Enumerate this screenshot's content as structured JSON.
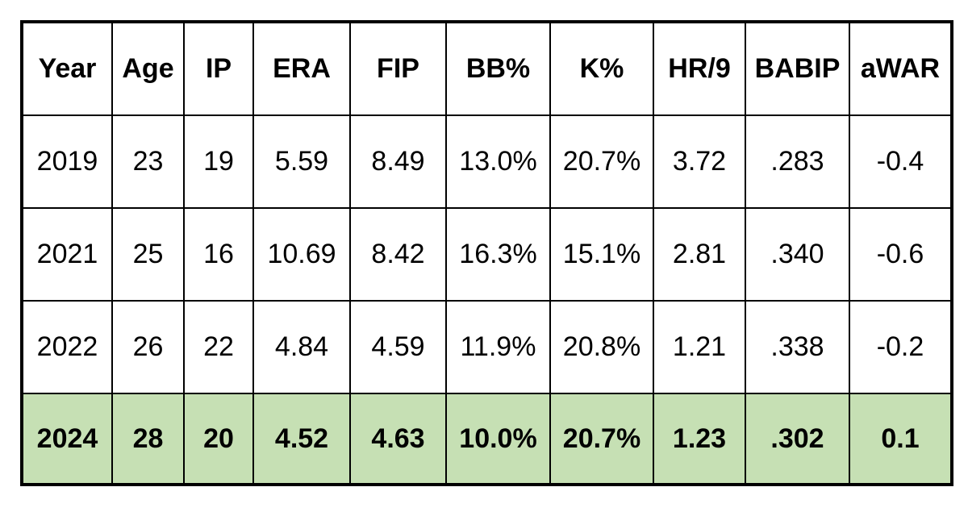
{
  "table": {
    "header": [
      "Year",
      "Age",
      "IP",
      "ERA",
      "FIP",
      "BB%",
      "K%",
      "HR/9",
      "BABIP",
      "aWAR"
    ],
    "rows": [
      [
        "2019",
        "23",
        "19",
        "5.59",
        "8.49",
        "13.0%",
        "20.7%",
        "3.72",
        ".283",
        "-0.4"
      ],
      [
        "2021",
        "25",
        "16",
        "10.69",
        "8.42",
        "16.3%",
        "15.1%",
        "2.81",
        ".340",
        "-0.6"
      ],
      [
        "2022",
        "26",
        "22",
        "4.84",
        "4.59",
        "11.9%",
        "20.8%",
        "1.21",
        ".338",
        "-0.2"
      ],
      [
        "2024",
        "28",
        "20",
        "4.52",
        "4.63",
        "10.0%",
        "20.7%",
        "1.23",
        ".302",
        "0.1"
      ]
    ]
  }
}
